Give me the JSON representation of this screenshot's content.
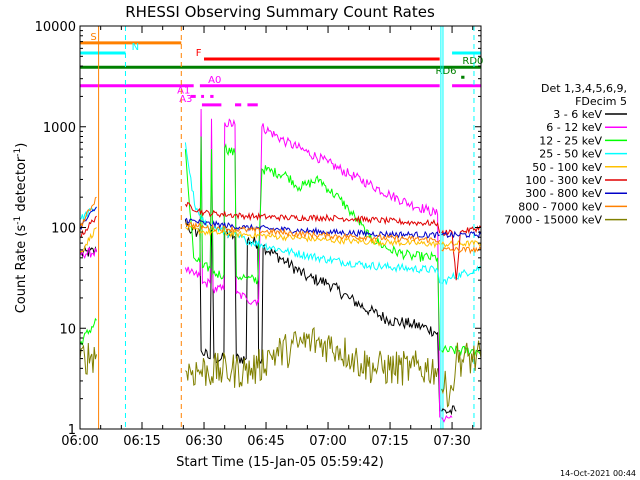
{
  "chart_data": {
    "type": "line",
    "title": "RHESSI Observing Summary Count Rates",
    "xlabel": "Start Time (15-Jan-05 05:59:42)",
    "ylabel_main": "Count Rate (s",
    "ylabel_sup": "-1",
    "ylabel_mid": " detector",
    "ylabel_sup2": "-1",
    "ylabel_end": ")",
    "yscale": "log",
    "ylim": [
      1,
      10000
    ],
    "xlim_minutes": [
      0,
      97
    ],
    "x_ticks": [
      {
        "label": "06:00",
        "t": 0
      },
      {
        "label": "06:15",
        "t": 15
      },
      {
        "label": "06:30",
        "t": 30
      },
      {
        "label": "06:45",
        "t": 45
      },
      {
        "label": "07:00",
        "t": 60
      },
      {
        "label": "07:15",
        "t": 75
      },
      {
        "label": "07:30",
        "t": 90
      }
    ],
    "y_ticks": [
      {
        "label": "1",
        "v": 1
      },
      {
        "label": "10",
        "v": 10
      },
      {
        "label": "100",
        "v": 100
      },
      {
        "label": "1000",
        "v": 1000
      },
      {
        "label": "10000",
        "v": 10000
      }
    ],
    "legend_header": [
      "Det 1,3,4,5,6,9,",
      "FDecim 5"
    ],
    "legend": [
      {
        "label": "3 - 6 keV",
        "color": "#000000"
      },
      {
        "label": "6 - 12 keV",
        "color": "#ff00ff"
      },
      {
        "label": "12 - 25 keV",
        "color": "#00ff00"
      },
      {
        "label": "25 - 50 keV",
        "color": "#00ffff"
      },
      {
        "label": "50 - 100 keV",
        "color": "#ffc000"
      },
      {
        "label": "100 - 300 keV",
        "color": "#e00000"
      },
      {
        "label": "300 - 800 keV",
        "color": "#0000c8"
      },
      {
        "label": "800 - 7000 keV",
        "color": "#ff8000"
      },
      {
        "label": "7000 - 15000 keV",
        "color": "#808000"
      }
    ],
    "flag_bars": [
      {
        "label": "S",
        "color": "#ff8000",
        "value": 6800,
        "segments": [
          [
            0,
            24.5
          ]
        ],
        "label_t": 2.5,
        "label_color": "#ff8000"
      },
      {
        "label": "N",
        "color": "#00ffff",
        "value": 5400,
        "segments": [
          [
            0,
            11
          ],
          [
            90,
            97
          ]
        ],
        "label_t": 12.5,
        "label_color": "#00ffff"
      },
      {
        "label": "F",
        "color": "#ff0000",
        "value": 4700,
        "segments": [
          [
            30,
            87
          ]
        ],
        "label_t": 28,
        "label_color": "#ff0000"
      },
      {
        "label": "RD0",
        "color": "#008000",
        "value": 3900,
        "segments": [
          [
            0,
            97
          ]
        ],
        "label_t": 92.5,
        "label_color": "#008000"
      },
      {
        "label": "RD6",
        "color": "#008000",
        "value": 3100,
        "segments": [
          [
            92.2,
            93
          ]
        ],
        "label_t": 86,
        "label_color": "#008000"
      },
      {
        "label": "A0",
        "color": "#ff00ff",
        "value": 2550,
        "segments": [
          [
            0,
            27.5
          ],
          [
            29,
            87
          ],
          [
            90,
            97
          ]
        ],
        "label_t": 31,
        "label_color": "#ff00ff"
      },
      {
        "label": "A1",
        "color": "#ff00ff",
        "value": 2000,
        "segments": [
          [
            26.8,
            28
          ],
          [
            29.3,
            30
          ],
          [
            31.5,
            32.3
          ]
        ],
        "label_t": 23.5,
        "label_color": "#ff00ff"
      },
      {
        "label": "A3",
        "color": "#ff00ff",
        "value": 1650,
        "segments": [
          [
            29.5,
            34.2
          ],
          [
            37.5,
            39
          ],
          [
            40.5,
            43
          ]
        ],
        "label_t": 24,
        "label_color": "#ff00ff"
      }
    ],
    "v_lines": [
      {
        "t": 4.5,
        "color": "#ff8000",
        "dash": "none"
      },
      {
        "t": 11,
        "color": "#00ffff",
        "dash": "5,4"
      },
      {
        "t": 24.5,
        "color": "#ff8000",
        "dash": "5,4"
      },
      {
        "t": 87.3,
        "color": "#00ffff",
        "dash": "none"
      },
      {
        "t": 87.8,
        "color": "#00ffff",
        "dash": "none"
      },
      {
        "t": 95.3,
        "color": "#00ffff",
        "dash": "5,4"
      }
    ],
    "series": [
      {
        "name": "3 - 6 keV",
        "color": "#000000",
        "noise": 0.06,
        "segments": [
          [
            [
              0,
              55
            ],
            [
              4,
              58
            ]
          ],
          [
            [
              25.5,
              120
            ],
            [
              27,
              90
            ],
            [
              29,
              90
            ],
            [
              29.3,
              6
            ],
            [
              31.5,
              5
            ],
            [
              31.8,
              95
            ],
            [
              32,
              90
            ],
            [
              32.4,
              5
            ],
            [
              34.8,
              5
            ],
            [
              35,
              90
            ],
            [
              37.5,
              80
            ],
            [
              37.8,
              5
            ],
            [
              40.2,
              5
            ],
            [
              40.5,
              75
            ],
            [
              43,
              70
            ],
            [
              43.2,
              5
            ],
            [
              44,
              5
            ],
            [
              44.3,
              65
            ],
            [
              50,
              45
            ],
            [
              55,
              32
            ],
            [
              60,
              28
            ],
            [
              65,
              20
            ],
            [
              70,
              15
            ],
            [
              75,
              12
            ],
            [
              80,
              11
            ],
            [
              84,
              10
            ],
            [
              86.5,
              9
            ],
            [
              87,
              1.5
            ]
          ],
          [
            [
              87.5,
              1.5
            ],
            [
              91,
              1.5
            ]
          ]
        ]
      },
      {
        "name": "6 - 12 keV",
        "color": "#ff00ff",
        "noise": 0.05,
        "segments": [
          [
            [
              0,
              55
            ],
            [
              4,
              57
            ]
          ],
          [
            [
              25.5,
              40
            ],
            [
              26.5,
              35
            ],
            [
              29,
              33
            ],
            [
              29.3,
              1500
            ],
            [
              29.6,
              28
            ],
            [
              31.5,
              28
            ],
            [
              31.8,
              1200
            ],
            [
              32.2,
              25
            ],
            [
              34.8,
              24
            ],
            [
              35,
              1100
            ],
            [
              37.5,
              1050
            ],
            [
              37.8,
              22
            ],
            [
              40.2,
              20
            ],
            [
              40.5,
              19
            ],
            [
              43,
              19
            ],
            [
              43.2,
              18
            ],
            [
              44,
              1000
            ],
            [
              50,
              700
            ],
            [
              55,
              560
            ],
            [
              60,
              440
            ],
            [
              65,
              340
            ],
            [
              70,
              270
            ],
            [
              75,
              210
            ],
            [
              80,
              170
            ],
            [
              84,
              150
            ],
            [
              86.5,
              135
            ],
            [
              87,
              1.3
            ]
          ],
          [
            [
              87.5,
              1.3
            ],
            [
              90,
              1.3
            ]
          ]
        ]
      },
      {
        "name": "12 - 25 keV",
        "color": "#00ff00",
        "noise": 0.05,
        "segments": [
          [
            [
              0,
              7
            ],
            [
              4,
              12
            ]
          ],
          [
            [
              25.5,
              600
            ],
            [
              26,
              300
            ],
            [
              27.5,
              50
            ],
            [
              29,
              45
            ],
            [
              29.3,
              800
            ],
            [
              29.6,
              40
            ],
            [
              31.5,
              40
            ],
            [
              31.8,
              600
            ],
            [
              32.2,
              35
            ],
            [
              34.8,
              34
            ],
            [
              35,
              620
            ],
            [
              37.5,
              540
            ],
            [
              37.8,
              33
            ],
            [
              40.2,
              32
            ],
            [
              40.5,
              31
            ],
            [
              43,
              30
            ],
            [
              44,
              380
            ],
            [
              50,
              330
            ],
            [
              53,
              250
            ],
            [
              55,
              270
            ],
            [
              58,
              300
            ],
            [
              60,
              240
            ],
            [
              63,
              190
            ],
            [
              65,
              150
            ],
            [
              67,
              120
            ],
            [
              70,
              80
            ],
            [
              75,
              60
            ],
            [
              80,
              52
            ],
            [
              86.5,
              50
            ],
            [
              87,
              6
            ]
          ],
          [
            [
              87.5,
              6
            ],
            [
              97,
              6
            ]
          ]
        ]
      },
      {
        "name": "25 - 50 keV",
        "color": "#00ffff",
        "noise": 0.04,
        "segments": [
          [
            [
              0,
              120
            ],
            [
              4,
              160
            ]
          ],
          [
            [
              25.5,
              700
            ],
            [
              26.5,
              350
            ],
            [
              28,
              150
            ],
            [
              30,
              110
            ],
            [
              40,
              75
            ],
            [
              50,
              58
            ],
            [
              60,
              48
            ],
            [
              70,
              42
            ],
            [
              80,
              39
            ],
            [
              86.5,
              38
            ],
            [
              87,
              28
            ]
          ],
          [
            [
              87.5,
              28
            ],
            [
              90,
              32
            ],
            [
              97,
              40
            ]
          ]
        ]
      },
      {
        "name": "50 - 100 keV",
        "color": "#ffc000",
        "noise": 0.03,
        "segments": [
          [
            [
              0,
              55
            ],
            [
              4,
              100
            ]
          ],
          [
            [
              25.5,
              100
            ],
            [
              30,
              90
            ],
            [
              40,
              85
            ],
            [
              50,
              80
            ],
            [
              60,
              75
            ],
            [
              70,
              72
            ],
            [
              80,
              70
            ],
            [
              87,
              68
            ]
          ],
          [
            [
              87.5,
              68
            ],
            [
              97,
              70
            ]
          ]
        ]
      },
      {
        "name": "100 - 300 keV",
        "color": "#e00000",
        "noise": 0.03,
        "segments": [
          [
            [
              0,
              80
            ],
            [
              4,
              130
            ]
          ],
          [
            [
              25.5,
              170
            ],
            [
              30,
              140
            ],
            [
              40,
              130
            ],
            [
              50,
              125
            ],
            [
              60,
              125
            ],
            [
              70,
              120
            ],
            [
              80,
              112
            ],
            [
              86.5,
              110
            ],
            [
              87,
              88
            ]
          ],
          [
            [
              87.5,
              88
            ],
            [
              90,
              90
            ],
            [
              91,
              30
            ],
            [
              92,
              90
            ],
            [
              97,
              100
            ]
          ]
        ]
      },
      {
        "name": "300 - 800 keV",
        "color": "#0000c8",
        "noise": 0.03,
        "segments": [
          [
            [
              0,
              100
            ],
            [
              4,
              160
            ]
          ],
          [
            [
              25.5,
              120
            ],
            [
              30,
              110
            ],
            [
              40,
              100
            ],
            [
              50,
              95
            ],
            [
              60,
              90
            ],
            [
              70,
              87
            ],
            [
              80,
              85
            ],
            [
              87,
              84
            ]
          ],
          [
            [
              87.5,
              84
            ],
            [
              97,
              85
            ]
          ]
        ]
      },
      {
        "name": "800 - 7000 keV",
        "color": "#ff8000",
        "noise": 0.03,
        "segments": [
          [
            [
              0,
              100
            ],
            [
              4,
              200
            ]
          ],
          [
            [
              25.5,
              110
            ],
            [
              30,
              100
            ],
            [
              40,
              95
            ],
            [
              50,
              88
            ],
            [
              60,
              83
            ],
            [
              70,
              80
            ],
            [
              80,
              77
            ],
            [
              87,
              75
            ]
          ],
          [
            [
              87.5,
              60
            ],
            [
              97,
              60
            ]
          ]
        ]
      },
      {
        "name": "7000 - 15000 keV",
        "color": "#808000",
        "noise": 0.18,
        "segments": [
          [
            [
              0,
              5
            ],
            [
              4,
              5.5
            ]
          ],
          [
            [
              25.5,
              3.8
            ],
            [
              40,
              3.8
            ],
            [
              43,
              4
            ],
            [
              46,
              5.5
            ],
            [
              50,
              6
            ],
            [
              53,
              7
            ],
            [
              56,
              7.5
            ],
            [
              59,
              7
            ],
            [
              62,
              6.5
            ],
            [
              65,
              5.5
            ],
            [
              68,
              4.5
            ],
            [
              72,
              4
            ],
            [
              80,
              4
            ],
            [
              86.5,
              4
            ]
          ],
          [
            [
              87.5,
              2.5
            ],
            [
              90,
              2.5
            ],
            [
              91,
              5
            ],
            [
              97,
              5
            ]
          ]
        ]
      }
    ]
  },
  "footer": {
    "timestamp": "14-Oct-2021 00:44"
  }
}
